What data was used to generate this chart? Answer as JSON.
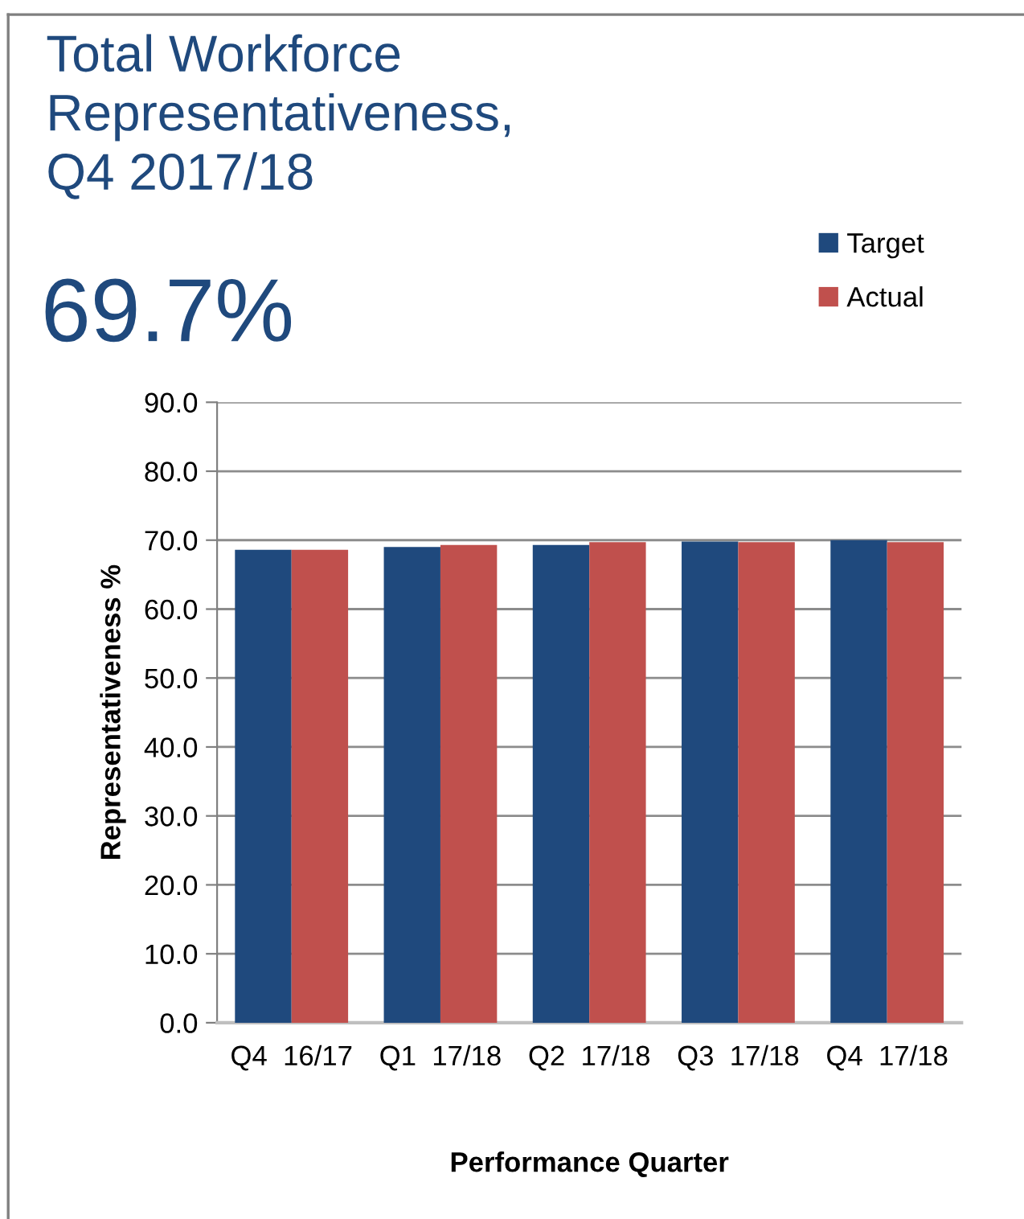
{
  "chart_data": {
    "type": "bar",
    "title": "Total Workforce\nRepresentativeness,\nQ4 2017/18",
    "subtitle": "69.7%",
    "xlabel": "Performance Quarter",
    "ylabel": "Representativeness %",
    "categories": [
      "Q4  16/17",
      "Q1  17/18",
      "Q2  17/18",
      "Q3  17/18",
      "Q4  17/18"
    ],
    "series": [
      {
        "name": "Target",
        "color": "#1f497d",
        "values": [
          68.6,
          69.0,
          69.3,
          69.8,
          70.0
        ]
      },
      {
        "name": "Actual",
        "color": "#c0504d",
        "values": [
          68.6,
          69.3,
          69.7,
          69.7,
          69.7
        ]
      }
    ],
    "ylim": [
      0,
      90
    ],
    "yticks": [
      {
        "value": 0,
        "label": "0.0"
      },
      {
        "value": 10,
        "label": "10.0"
      },
      {
        "value": 20,
        "label": "20.0"
      },
      {
        "value": 30,
        "label": "30.0"
      },
      {
        "value": 40,
        "label": "40.0"
      },
      {
        "value": 50,
        "label": "50.0"
      },
      {
        "value": 60,
        "label": "60.0"
      },
      {
        "value": 70,
        "label": "70.0"
      },
      {
        "value": 80,
        "label": "80.0"
      },
      {
        "value": 90,
        "label": "90.0"
      }
    ],
    "grid": "y",
    "legend": "top right"
  }
}
